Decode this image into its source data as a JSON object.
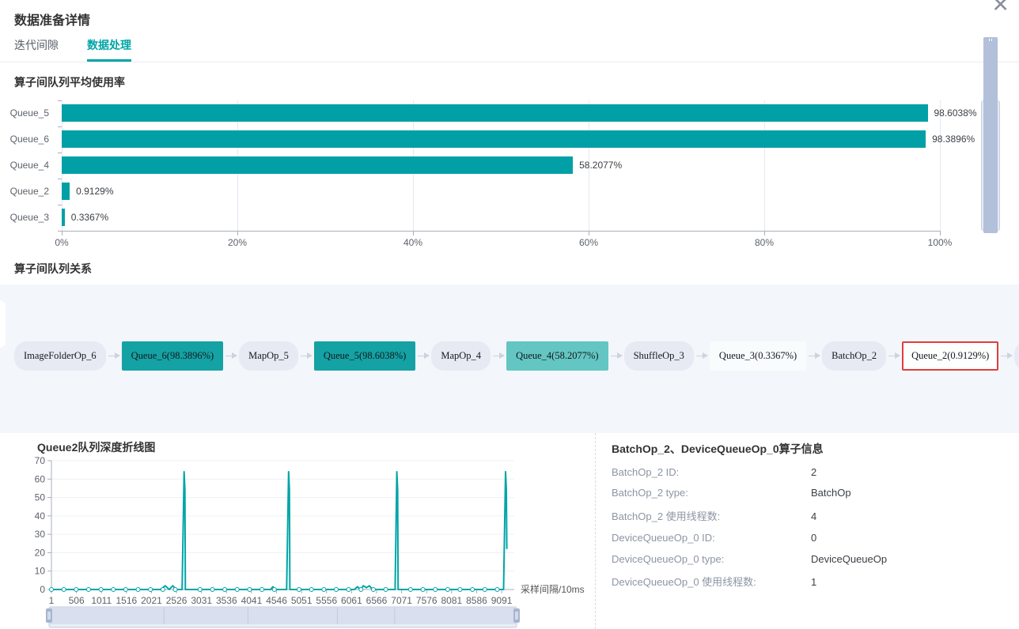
{
  "window": {
    "title": "数据准备详情",
    "close_glyph": "✕"
  },
  "tabs": [
    {
      "label": "迭代间隙",
      "active": false
    },
    {
      "label": "数据处理",
      "active": true
    }
  ],
  "sections": {
    "queue_usage_title": "算子间队列平均使用率",
    "queue_relation_title": "算子间队列关系",
    "line_chart_title": "Queue2队列深度折线图"
  },
  "colors": {
    "accent": "#00a5a7",
    "bar": "#00a0a6",
    "panel_bg": "#f3f6fa",
    "selected_border": "#e23c3c",
    "queue_high": "#14a2a4",
    "queue_mid": "#63c6c3",
    "queue_low": "#f8fcfd"
  },
  "chart_data": [
    {
      "type": "bar",
      "orientation": "horizontal",
      "title": "算子间队列平均使用率",
      "categories": [
        "Queue_5",
        "Queue_6",
        "Queue_4",
        "Queue_2",
        "Queue_3"
      ],
      "values": [
        98.6038,
        98.3896,
        58.2077,
        0.9129,
        0.3367
      ],
      "value_labels": [
        "98.6038%",
        "98.3896%",
        "58.2077%",
        "0.9129%",
        "0.3367%"
      ],
      "x_ticks": [
        "0%",
        "20%",
        "40%",
        "60%",
        "80%",
        "100%"
      ],
      "xlim": [
        0,
        100
      ],
      "bar_color": "#00a0a6",
      "legend_position": "none",
      "grid": true
    },
    {
      "type": "line",
      "title": "Queue2队列深度折线图",
      "xlabel": "采样间隔/10ms",
      "ylabel": "",
      "x_ticks": [
        1,
        506,
        1011,
        1516,
        2021,
        2526,
        3031,
        3536,
        4041,
        4546,
        5051,
        5556,
        6061,
        6566,
        7071,
        7576,
        8081,
        8586,
        9091
      ],
      "y_ticks": [
        0,
        10,
        20,
        30,
        40,
        50,
        60,
        70
      ],
      "xlim": [
        1,
        9345
      ],
      "ylim": [
        0,
        70
      ],
      "line_color": "#00a5a7",
      "marker_step": 250,
      "points": [
        [
          1,
          0
        ],
        [
          2200,
          0
        ],
        [
          2300,
          2
        ],
        [
          2380,
          0
        ],
        [
          2450,
          2
        ],
        [
          2520,
          0
        ],
        [
          2640,
          0
        ],
        [
          2680,
          64
        ],
        [
          2695,
          54
        ],
        [
          2705,
          0
        ],
        [
          4430,
          0
        ],
        [
          4470,
          1.5
        ],
        [
          4510,
          0
        ],
        [
          4750,
          0
        ],
        [
          4790,
          64
        ],
        [
          4805,
          54
        ],
        [
          4815,
          0
        ],
        [
          6120,
          0
        ],
        [
          6180,
          1.5
        ],
        [
          6240,
          0
        ],
        [
          6300,
          2
        ],
        [
          6360,
          1
        ],
        [
          6420,
          2
        ],
        [
          6480,
          0
        ],
        [
          6940,
          0
        ],
        [
          6975,
          64
        ],
        [
          6990,
          54
        ],
        [
          7000,
          0
        ],
        [
          9130,
          0
        ],
        [
          9170,
          64
        ],
        [
          9185,
          54
        ],
        [
          9195,
          22
        ]
      ]
    }
  ],
  "graph": {
    "nodes": [
      {
        "label": "ImageFolderOp_6",
        "kind": "op"
      },
      {
        "label": "Queue_6(98.3896%)",
        "kind": "queue",
        "usage": 98.3896,
        "color": "#14a2a4"
      },
      {
        "label": "MapOp_5",
        "kind": "op"
      },
      {
        "label": "Queue_5(98.6038%)",
        "kind": "queue",
        "usage": 98.6038,
        "color": "#14a2a4"
      },
      {
        "label": "MapOp_4",
        "kind": "op"
      },
      {
        "label": "Queue_4(58.2077%)",
        "kind": "queue",
        "usage": 58.2077,
        "color": "#63c6c3"
      },
      {
        "label": "ShuffleOp_3",
        "kind": "op"
      },
      {
        "label": "Queue_3(0.3367%)",
        "kind": "queue",
        "usage": 0.3367,
        "color": "#f8fcfd"
      },
      {
        "label": "BatchOp_2",
        "kind": "op"
      },
      {
        "label": "Queue_2(0.9129%)",
        "kind": "queue",
        "usage": 0.9129,
        "color": "#fdfefe",
        "selected": true
      },
      {
        "label": "DeviceQueueOp_0",
        "kind": "op"
      }
    ]
  },
  "op_info": {
    "title": "BatchOp_2、DeviceQueueOp_0算子信息",
    "rows": [
      {
        "label": "BatchOp_2 ID:",
        "value": "2"
      },
      {
        "label": "BatchOp_2 type:",
        "value": "BatchOp"
      },
      {
        "label": "BatchOp_2 使用线程数:",
        "value": "4"
      },
      {
        "label": "DeviceQueueOp_0 ID:",
        "value": "0"
      },
      {
        "label": "DeviceQueueOp_0 type:",
        "value": "DeviceQueueOp"
      },
      {
        "label": "DeviceQueueOp_0 使用线程数:",
        "value": "1"
      }
    ]
  }
}
